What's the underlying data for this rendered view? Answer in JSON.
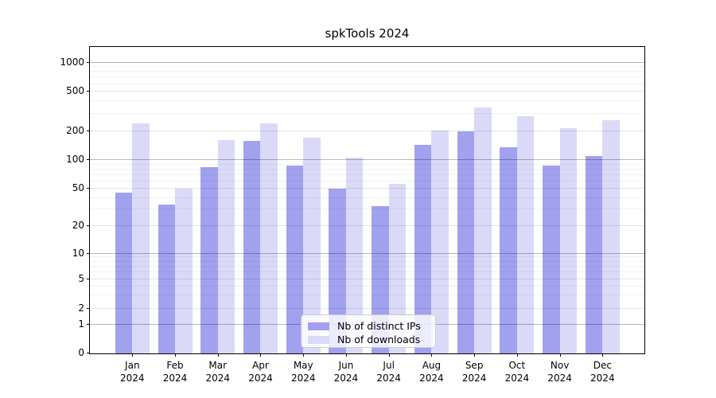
{
  "title": "spkTools 2024",
  "chart_data": {
    "type": "bar",
    "title": "spkTools 2024",
    "categories": [
      "Jan",
      "Feb",
      "Mar",
      "Apr",
      "May",
      "Jun",
      "Jul",
      "Aug",
      "Sep",
      "Oct",
      "Nov",
      "Dec"
    ],
    "year_label": "2024",
    "series": [
      {
        "name": "Nb of distinct IPs",
        "color": "#a1a1ef",
        "values": [
          46,
          34,
          85,
          160,
          87,
          50,
          33,
          144,
          200,
          136,
          88,
          111
        ]
      },
      {
        "name": "Nb of downloads",
        "color": "#dadaf8",
        "values": [
          243,
          50,
          161,
          240,
          171,
          107,
          56,
          204,
          346,
          287,
          218,
          260
        ]
      }
    ],
    "yticks": [
      0,
      1,
      2,
      5,
      10,
      20,
      50,
      100,
      200,
      500,
      1000
    ],
    "minor_gridline_values": [
      3,
      4,
      6,
      7,
      8,
      9,
      30,
      40,
      60,
      70,
      80,
      90,
      300,
      400,
      600,
      700,
      800,
      900
    ],
    "xlabel": "",
    "ylabel": "",
    "ylim": [
      0,
      1400
    ],
    "scale": "log-like with 0 baseline (symlog)",
    "grid": "horizontal, major and minor, drawn over bars",
    "legend_position": "bottom-center inside plot area"
  },
  "legend": {
    "items": [
      {
        "label": "Nb of distinct IPs",
        "color": "#a1a1ef"
      },
      {
        "label": "Nb of downloads",
        "color": "#dadaf8"
      }
    ]
  },
  "colors": {
    "background": "#ffffff",
    "axis": "#000000",
    "grid_major": "rgba(0,0,0,0.28)",
    "grid_labeled": "rgba(0,0,0,0.11)",
    "grid_minor": "rgba(0,0,0,0.055)",
    "series_ips": "#a1a1ef",
    "series_downloads": "#dadaf8"
  }
}
